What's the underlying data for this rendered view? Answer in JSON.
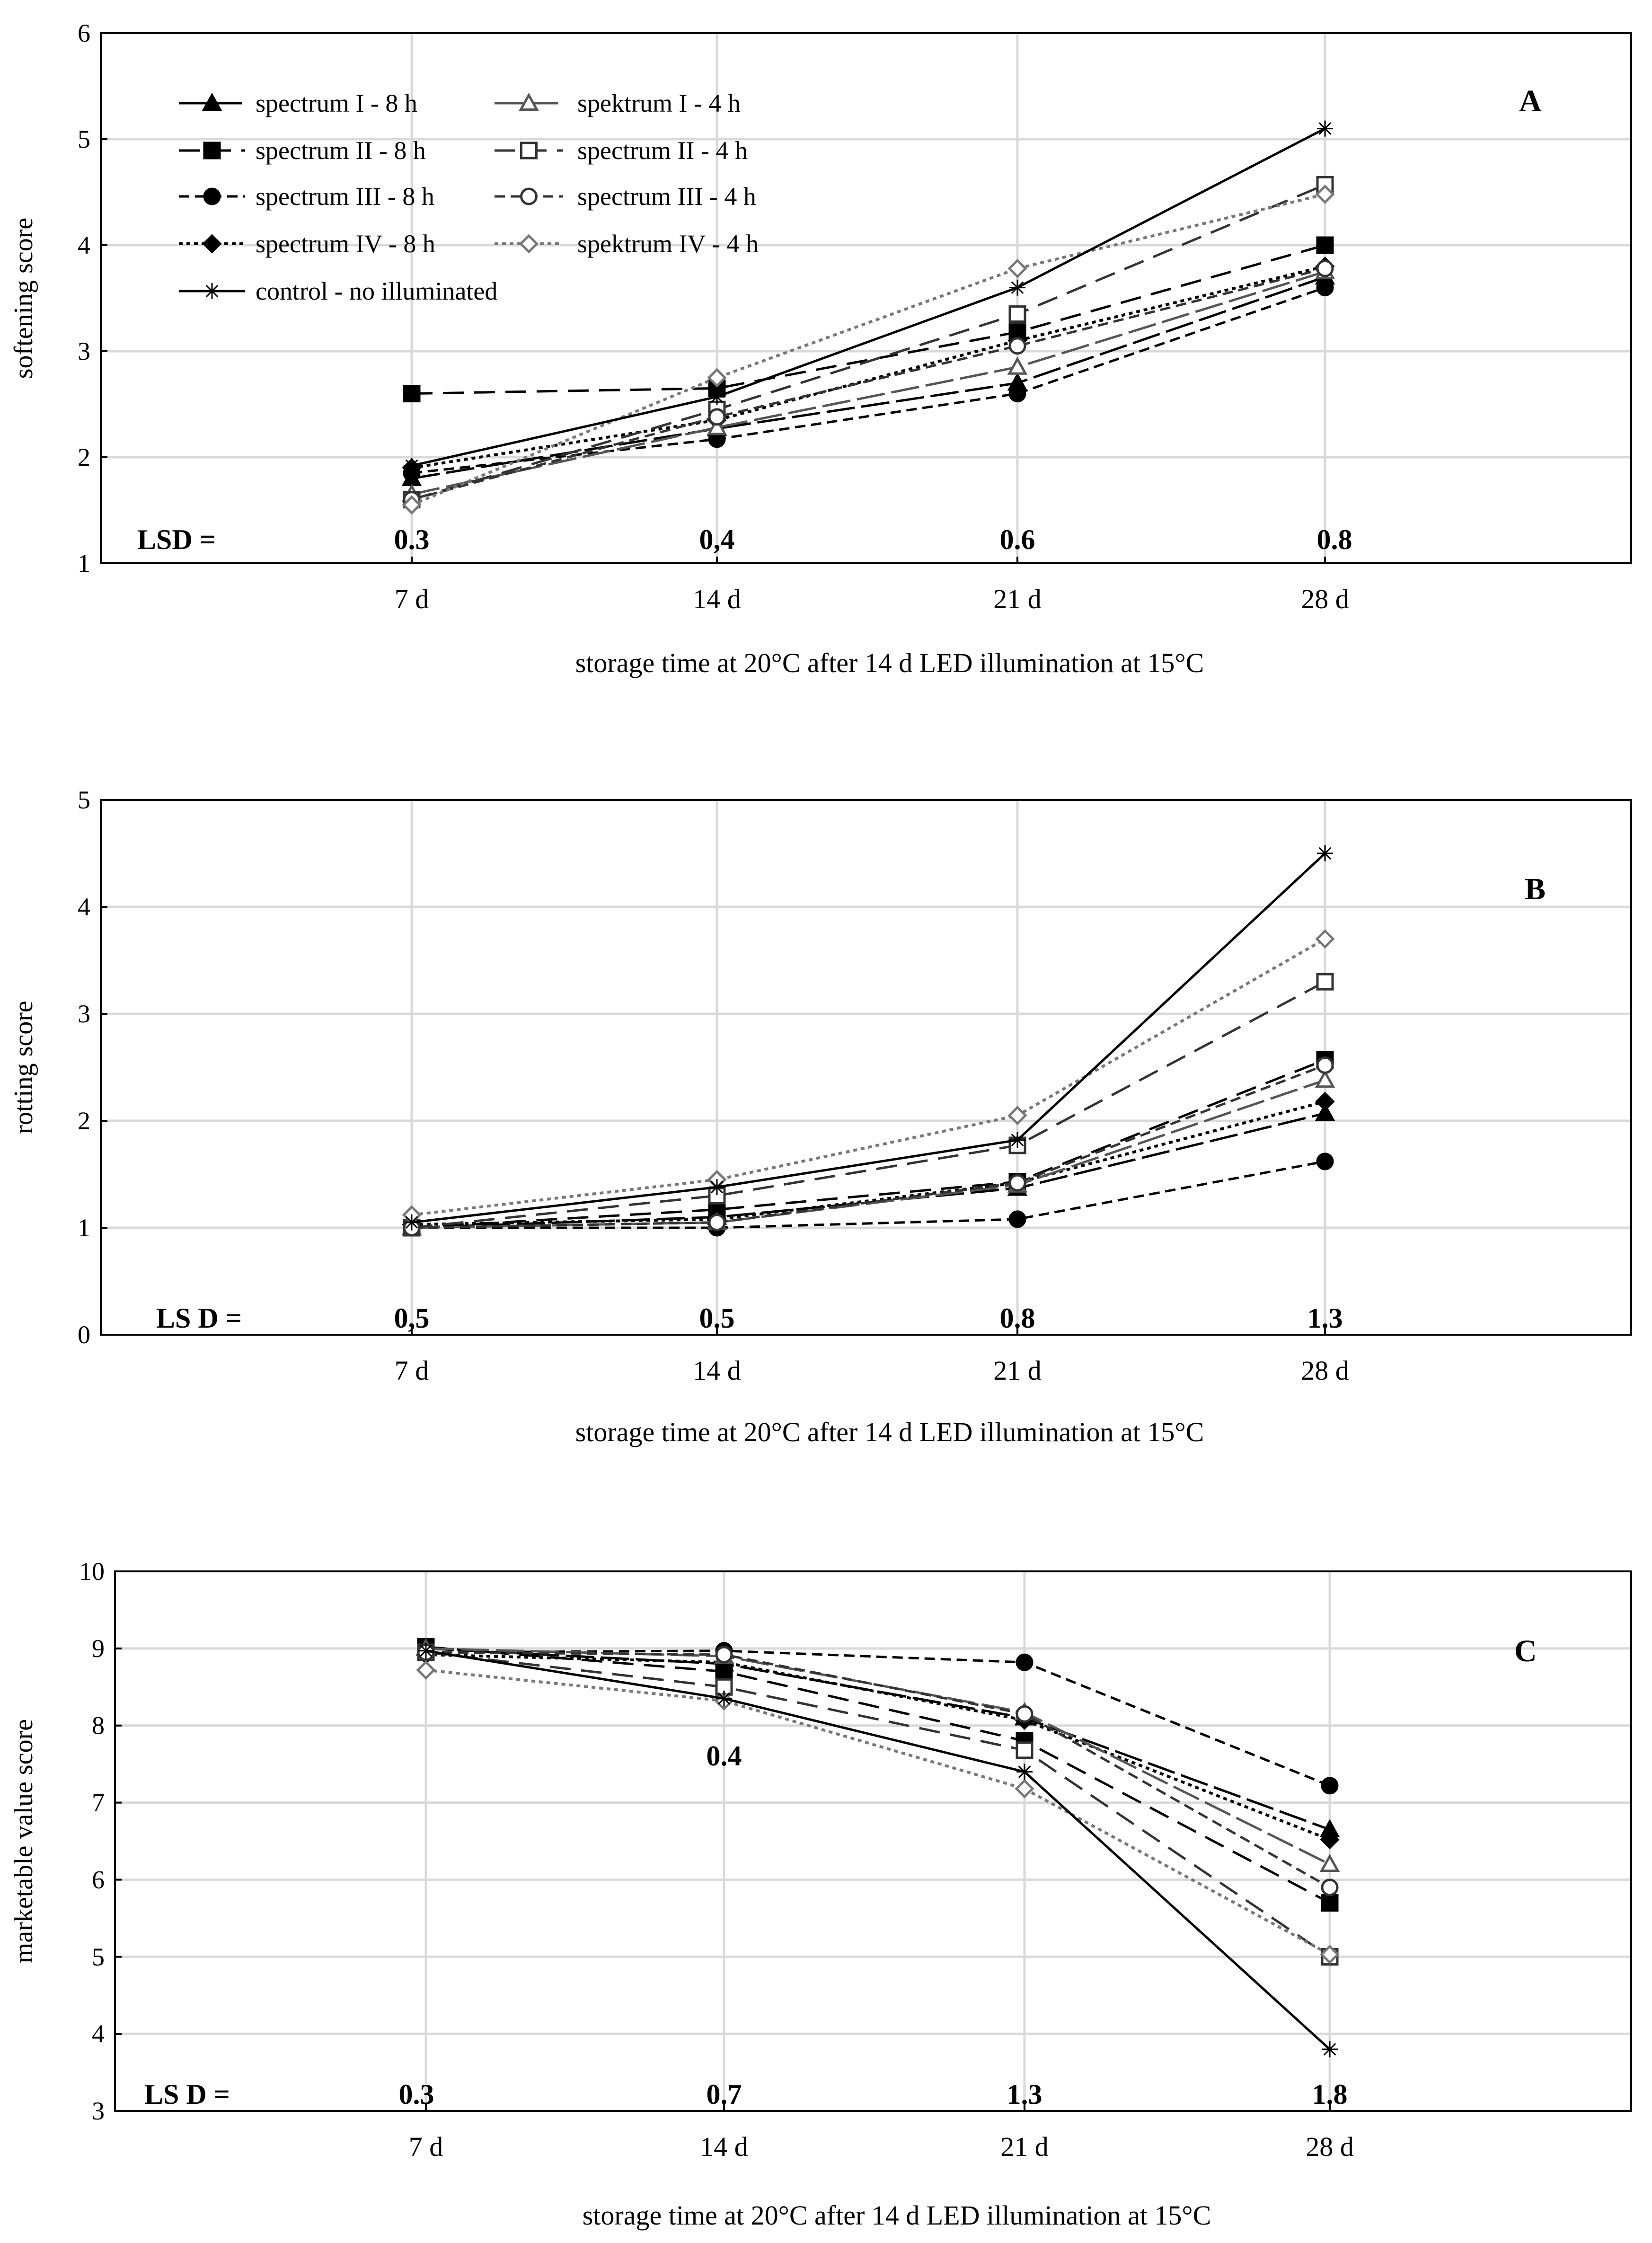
{
  "chart_data": [
    {
      "type": "line",
      "panel": "A",
      "ylabel": "softening score",
      "xlabel": "storage time at 20°C after 14 d LED illumination at 15°C",
      "categories": [
        "7 d",
        "14 d",
        "21 d",
        "28 d"
      ],
      "ylim": [
        1,
        6
      ],
      "yticks": [
        1,
        2,
        3,
        4,
        5,
        6
      ],
      "lsd_label": "LSD =",
      "lsd_values": [
        "0.3",
        "0,4",
        "0.6",
        "0.8"
      ],
      "series": [
        {
          "name": "spectrum I - 8 h",
          "values": [
            1.8,
            2.27,
            2.7,
            3.7
          ]
        },
        {
          "name": "spectrum II - 8 h",
          "values": [
            2.6,
            2.65,
            3.18,
            4.0
          ]
        },
        {
          "name": "spectrum III - 8 h",
          "values": [
            1.85,
            2.17,
            2.6,
            3.6
          ]
        },
        {
          "name": "spectrum IV - 8 h",
          "values": [
            1.9,
            2.35,
            3.1,
            3.8
          ]
        },
        {
          "name": "spektrum I - 4 h",
          "values": [
            1.65,
            2.28,
            2.85,
            3.75
          ]
        },
        {
          "name": "spectrum II - 4 h",
          "values": [
            1.6,
            2.45,
            3.35,
            4.57
          ]
        },
        {
          "name": "spectrum III - 4 h",
          "values": [
            1.6,
            2.38,
            3.05,
            3.78
          ]
        },
        {
          "name": "spektrum IV - 4 h",
          "values": [
            1.55,
            2.75,
            3.78,
            4.48
          ]
        },
        {
          "name": "control - no illuminated",
          "values": [
            1.92,
            2.57,
            3.6,
            5.1
          ]
        }
      ]
    },
    {
      "type": "line",
      "panel": "B",
      "ylabel": "rotting score",
      "xlabel": "storage time at 20°C after 14 d LED illumination at 15°C",
      "categories": [
        "7 d",
        "14 d",
        "21 d",
        "28 d"
      ],
      "ylim": [
        0,
        5
      ],
      "yticks": [
        0,
        1,
        2,
        3,
        4,
        5
      ],
      "lsd_label": "LS D =",
      "lsd_values": [
        "0,5",
        "0.5",
        "0.8",
        "1.3"
      ],
      "series": [
        {
          "name": "spectrum I - 8 h",
          "values": [
            1.0,
            1.1,
            1.37,
            2.07
          ]
        },
        {
          "name": "spectrum II - 8 h",
          "values": [
            1.0,
            1.17,
            1.43,
            2.57
          ]
        },
        {
          "name": "spectrum III - 8 h",
          "values": [
            1.0,
            1.0,
            1.08,
            1.62
          ]
        },
        {
          "name": "spectrum IV - 8 h",
          "values": [
            1.03,
            1.08,
            1.42,
            2.18
          ]
        },
        {
          "name": "spektrum I - 4 h",
          "values": [
            1.0,
            1.05,
            1.4,
            2.38
          ]
        },
        {
          "name": "spectrum II - 4 h",
          "values": [
            1.0,
            1.3,
            1.77,
            3.3
          ]
        },
        {
          "name": "spectrum III - 4 h",
          "values": [
            1.0,
            1.05,
            1.42,
            2.52
          ]
        },
        {
          "name": "spektrum IV - 4 h",
          "values": [
            1.12,
            1.45,
            2.05,
            3.7
          ]
        },
        {
          "name": "control - no illuminated",
          "values": [
            1.05,
            1.38,
            1.82,
            4.5
          ]
        }
      ]
    },
    {
      "type": "line",
      "panel": "C",
      "ylabel": "marketable value score",
      "xlabel": "storage time at 20°C after 14 d LED illumination at 15°C",
      "categories": [
        "7 d",
        "14 d",
        "21 d",
        "28 d"
      ],
      "ylim": [
        3,
        10
      ],
      "yticks": [
        3,
        4,
        5,
        6,
        7,
        8,
        9,
        10
      ],
      "lsd_label": "LS D =",
      "lsd_values": [
        "0.3",
        "0.7",
        "1.3",
        "1.8"
      ],
      "extra_annotation": "0.4",
      "series": [
        {
          "name": "spectrum I - 8 h",
          "values": [
            9.0,
            8.8,
            8.1,
            6.65
          ]
        },
        {
          "name": "spectrum II - 8 h",
          "values": [
            9.02,
            8.7,
            7.8,
            5.7
          ]
        },
        {
          "name": "spectrum III - 8 h",
          "values": [
            8.95,
            8.97,
            8.82,
            7.22
          ]
        },
        {
          "name": "spectrum IV - 8 h",
          "values": [
            8.92,
            8.82,
            8.07,
            6.52
          ]
        },
        {
          "name": "spektrum I - 4 h",
          "values": [
            9.0,
            8.9,
            8.17,
            6.2
          ]
        },
        {
          "name": "spectrum II - 4 h",
          "values": [
            8.95,
            8.5,
            7.68,
            5.0
          ]
        },
        {
          "name": "spectrum III - 4 h",
          "values": [
            8.95,
            8.92,
            8.15,
            5.9
          ]
        },
        {
          "name": "spektrum IV - 4 h",
          "values": [
            8.72,
            8.32,
            7.18,
            5.03
          ]
        },
        {
          "name": "control - no illuminated",
          "values": [
            8.97,
            8.35,
            7.4,
            3.8
          ]
        }
      ]
    }
  ],
  "series_style": [
    {
      "marker": "triangle",
      "fill": "#000000",
      "stroke": "#000000",
      "dash": "long"
    },
    {
      "marker": "square",
      "fill": "#000000",
      "stroke": "#000000",
      "dash": "longgap"
    },
    {
      "marker": "circle",
      "fill": "#000000",
      "stroke": "#000000",
      "dash": "medium"
    },
    {
      "marker": "diamond",
      "fill": "#000000",
      "stroke": "#000000",
      "dash": "dot"
    },
    {
      "marker": "triangle",
      "fill": "#ffffff",
      "stroke": "#555555",
      "dash": "long"
    },
    {
      "marker": "square",
      "fill": "#ffffff",
      "stroke": "#333333",
      "dash": "longgap"
    },
    {
      "marker": "circle",
      "fill": "#ffffff",
      "stroke": "#333333",
      "dash": "medium"
    },
    {
      "marker": "diamond",
      "fill": "#ffffff",
      "stroke": "#777777",
      "dash": "dot"
    },
    {
      "marker": "star",
      "fill": "none",
      "stroke": "#000000",
      "dash": "solid"
    }
  ],
  "colors": {
    "grid": "#d9d9d9",
    "axis": "#000000",
    "gray_series": "#555555"
  }
}
